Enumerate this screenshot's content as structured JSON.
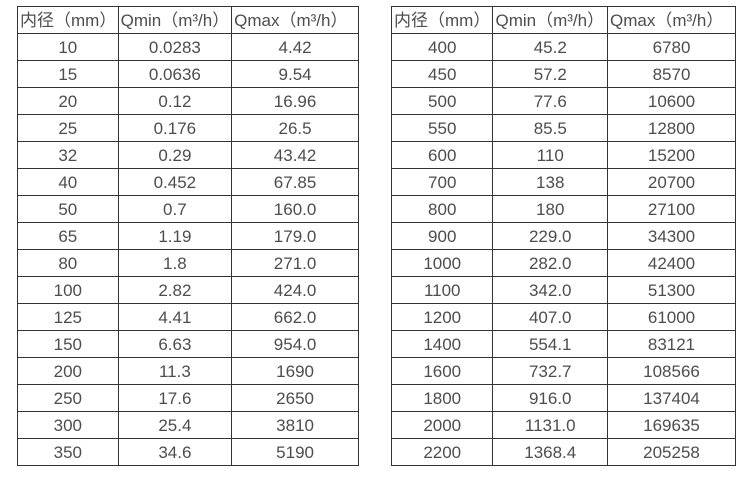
{
  "colors": {
    "background": "#ffffff",
    "border": "#333333",
    "text": "#4d4d4d"
  },
  "chart_data": [
    {
      "type": "table",
      "columns": [
        "内径（mm）",
        "Qmin（m³/h）",
        "Qmax（m³/h）"
      ],
      "rows": [
        [
          "10",
          "0.0283",
          "4.42"
        ],
        [
          "15",
          "0.0636",
          "9.54"
        ],
        [
          "20",
          "0.12",
          "16.96"
        ],
        [
          "25",
          "0.176",
          "26.5"
        ],
        [
          "32",
          "0.29",
          "43.42"
        ],
        [
          "40",
          "0.452",
          "67.85"
        ],
        [
          "50",
          "0.7",
          "160.0"
        ],
        [
          "65",
          "1.19",
          "179.0"
        ],
        [
          "80",
          "1.8",
          "271.0"
        ],
        [
          "100",
          "2.82",
          "424.0"
        ],
        [
          "125",
          "4.41",
          "662.0"
        ],
        [
          "150",
          "6.63",
          "954.0"
        ],
        [
          "200",
          "11.3",
          "1690"
        ],
        [
          "250",
          "17.6",
          "2650"
        ],
        [
          "300",
          "25.4",
          "3810"
        ],
        [
          "350",
          "34.6",
          "5190"
        ]
      ]
    },
    {
      "type": "table",
      "columns": [
        "内径（mm）",
        "Qmin（m³/h）",
        "Qmax（m³/h）"
      ],
      "rows": [
        [
          "400",
          "45.2",
          "6780"
        ],
        [
          "450",
          "57.2",
          "8570"
        ],
        [
          "500",
          "77.6",
          "10600"
        ],
        [
          "550",
          "85.5",
          "12800"
        ],
        [
          "600",
          "110",
          "15200"
        ],
        [
          "700",
          "138",
          "20700"
        ],
        [
          "800",
          "180",
          "27100"
        ],
        [
          "900",
          "229.0",
          "34300"
        ],
        [
          "1000",
          "282.0",
          "42400"
        ],
        [
          "1100",
          "342.0",
          "51300"
        ],
        [
          "1200",
          "407.0",
          "61000"
        ],
        [
          "1400",
          "554.1",
          "83121"
        ],
        [
          "1600",
          "732.7",
          "108566"
        ],
        [
          "1800",
          "916.0",
          "137404"
        ],
        [
          "2000",
          "1131.0",
          "169635"
        ],
        [
          "2200",
          "1368.4",
          "205258"
        ]
      ]
    }
  ]
}
